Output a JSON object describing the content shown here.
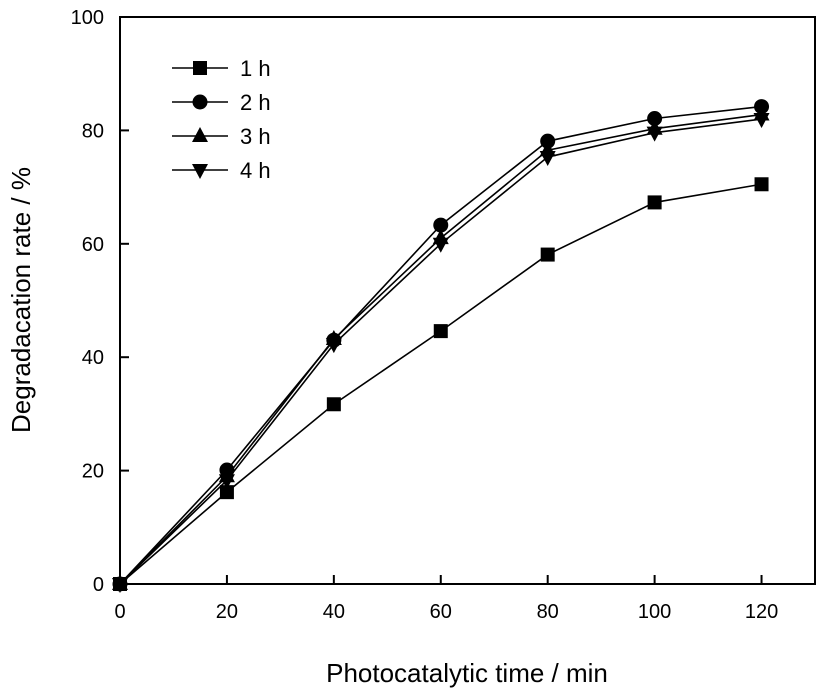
{
  "chart_data": {
    "type": "line",
    "title": "",
    "xlabel": "Photocatalytic time / min",
    "ylabel": "Degradacation rate / %",
    "xlim": [
      0,
      130
    ],
    "ylim": [
      0,
      100
    ],
    "xticks": [
      0,
      20,
      40,
      60,
      80,
      100,
      120
    ],
    "yticks": [
      0,
      20,
      40,
      60,
      80,
      100
    ],
    "grid": false,
    "legend_position": "top-left",
    "x": [
      0,
      20,
      40,
      60,
      80,
      100,
      120
    ],
    "series": [
      {
        "name": "1 h",
        "marker": "square",
        "values": [
          0,
          16.2,
          31.7,
          44.6,
          58.1,
          67.3,
          70.5
        ]
      },
      {
        "name": "2 h",
        "marker": "circle",
        "values": [
          0,
          20.1,
          43.0,
          63.3,
          78.1,
          82.1,
          84.2
        ]
      },
      {
        "name": "3 h",
        "marker": "triangle-up",
        "values": [
          0,
          19.0,
          43.2,
          61.0,
          76.5,
          80.3,
          82.8
        ]
      },
      {
        "name": "4 h",
        "marker": "triangle-down",
        "values": [
          0,
          18.3,
          42.3,
          60.0,
          75.3,
          79.6,
          82.0
        ]
      }
    ],
    "colors": {
      "line": "#000000",
      "marker": "#000000"
    }
  }
}
